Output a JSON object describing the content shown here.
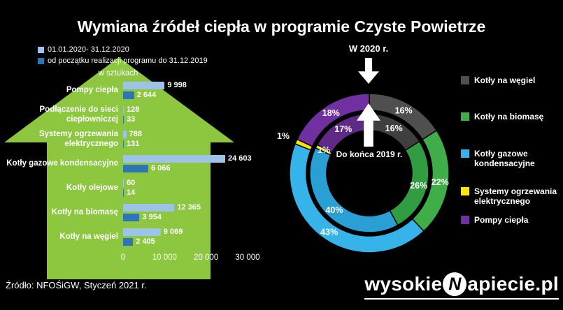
{
  "page": {
    "title": "Wymiana źródeł ciepła w programie Czyste Powietrze",
    "source": "Źródło: NFOŚiGW, Styczeń  2021 r.",
    "background": "#000000",
    "accent_green": "#8dc63f"
  },
  "chart_data": [
    {
      "type": "bar",
      "orientation": "horizontal",
      "title": "w sztukach",
      "categories": [
        "Pompy ciepła",
        "Podłączenie do sieci ciepłowniczej",
        "Systemy ogrzewania elektrycznego",
        "Kotły gazowe kondensacyjne",
        "Kotły olejowe",
        "Kotły na biomasę",
        "Kotły na węgiel"
      ],
      "series": [
        {
          "name": "01.01.2020- 31.12.2020",
          "color": "#9dc3e6",
          "values": [
            9998,
            128,
            788,
            24603,
            60,
            12365,
            9069
          ]
        },
        {
          "name": "od początku realizacji programu do 31.12.2019",
          "color": "#2e75b6",
          "values": [
            2644,
            33,
            131,
            6066,
            14,
            3954,
            2405
          ]
        }
      ],
      "x_ticks": [
        0,
        10000,
        20000,
        30000
      ],
      "xlim": [
        0,
        30000
      ],
      "legend_position": "top-left",
      "grid": false
    },
    {
      "type": "pie",
      "subtype": "double-donut",
      "categories": [
        "Kotły na węgiel",
        "Kotły na biomasę",
        "Kotły gazowe kondensacyjne",
        "Systemy ogrzewania elektrycznego",
        "Pompy ciepła"
      ],
      "colors_outer": [
        "#4f4f4f",
        "#3fae49",
        "#36b3e8",
        "#ffe600",
        "#7030a0"
      ],
      "colors_inner": [
        "#3f3f3f",
        "#319c41",
        "#2a9fd4",
        "#e3cc00",
        "#5e2a86"
      ],
      "series": [
        {
          "name": "W 2020 r.",
          "ring": "outer",
          "values": [
            16,
            22,
            43,
            1,
            18
          ]
        },
        {
          "name": "Do końca 2019 r.",
          "ring": "inner",
          "values": [
            16,
            26,
            40,
            1,
            17
          ]
        }
      ],
      "unit": "%",
      "legend_position": "right"
    }
  ],
  "footer": {
    "logo_prefix": "wysokie",
    "logo_n": "N",
    "logo_suffix": "apiecie.pl"
  }
}
